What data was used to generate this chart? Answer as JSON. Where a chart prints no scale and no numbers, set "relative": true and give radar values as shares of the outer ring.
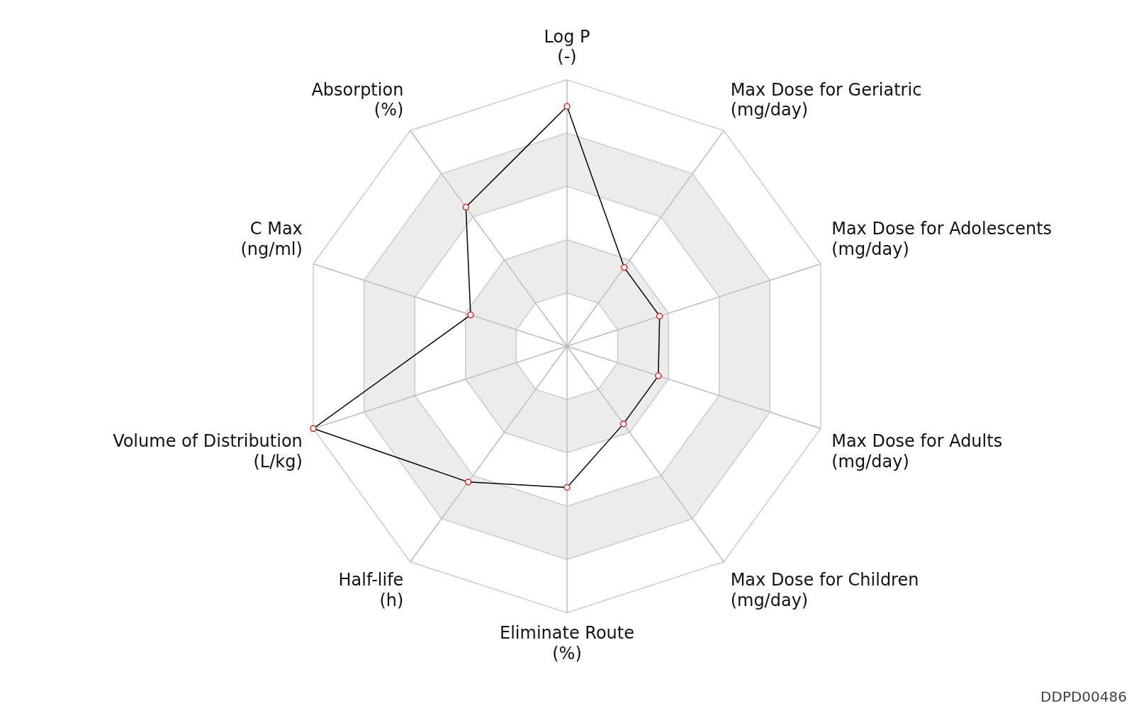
{
  "chart_data": {
    "type": "radar",
    "relative": true,
    "categories": [
      "Log P\n(-)",
      "Max Dose for Geriatric\n(mg/day)",
      "Max Dose for Adolescents\n(mg/day)",
      "Max Dose for Adults\n(mg/day)",
      "Max Dose for Children\n(mg/day)",
      "Eliminate Route\n(%)",
      "Half-life\n(h)",
      "Volume of Distribution\n(L/kg)",
      "C Max\n(ng/ml)",
      "Absorption\n(%)"
    ],
    "series": [
      {
        "color": "#000000",
        "values": [
          0.9,
          0.365,
          0.365,
          0.36,
          0.36,
          0.53,
          0.63,
          1.0,
          0.38,
          0.645
        ]
      }
    ],
    "marker": "circle",
    "legend": false,
    "annotations": [
      "DDPD00486"
    ]
  }
}
